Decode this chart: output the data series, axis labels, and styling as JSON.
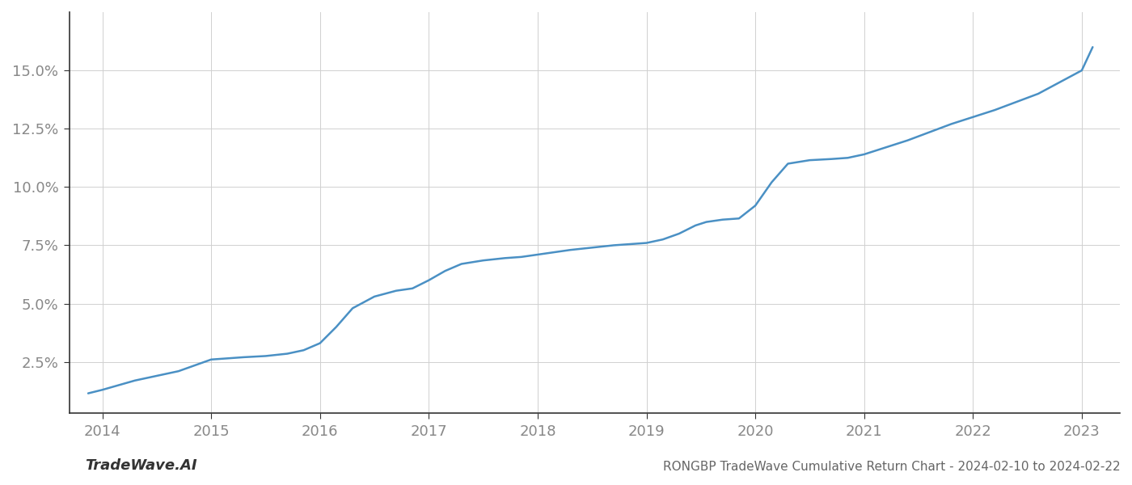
{
  "title": "RONGBP TradeWave Cumulative Return Chart - 2024-02-10 to 2024-02-22",
  "watermark": "TradeWave.AI",
  "line_color": "#4a90c4",
  "background_color": "#ffffff",
  "grid_color": "#d0d0d0",
  "x_years": [
    2014,
    2015,
    2016,
    2017,
    2018,
    2019,
    2020,
    2021,
    2022,
    2023
  ],
  "x_data": [
    2013.87,
    2014.0,
    2014.15,
    2014.3,
    2014.5,
    2014.7,
    2014.85,
    2015.0,
    2015.15,
    2015.3,
    2015.5,
    2015.7,
    2015.85,
    2016.0,
    2016.15,
    2016.3,
    2016.5,
    2016.7,
    2016.85,
    2017.0,
    2017.15,
    2017.3,
    2017.5,
    2017.7,
    2017.85,
    2018.0,
    2018.15,
    2018.3,
    2018.5,
    2018.7,
    2018.85,
    2019.0,
    2019.15,
    2019.3,
    2019.45,
    2019.55,
    2019.7,
    2019.85,
    2020.0,
    2020.15,
    2020.3,
    2020.5,
    2020.7,
    2020.85,
    2021.0,
    2021.2,
    2021.4,
    2021.6,
    2021.8,
    2022.0,
    2022.2,
    2022.4,
    2022.6,
    2022.8,
    2023.0,
    2023.1
  ],
  "y_data": [
    1.15,
    1.3,
    1.5,
    1.7,
    1.9,
    2.1,
    2.35,
    2.6,
    2.65,
    2.7,
    2.75,
    2.85,
    3.0,
    3.3,
    4.0,
    4.8,
    5.3,
    5.55,
    5.65,
    6.0,
    6.4,
    6.7,
    6.85,
    6.95,
    7.0,
    7.1,
    7.2,
    7.3,
    7.4,
    7.5,
    7.55,
    7.6,
    7.75,
    8.0,
    8.35,
    8.5,
    8.6,
    8.65,
    9.2,
    10.2,
    11.0,
    11.15,
    11.2,
    11.25,
    11.4,
    11.7,
    12.0,
    12.35,
    12.7,
    13.0,
    13.3,
    13.65,
    14.0,
    14.5,
    15.0,
    16.0
  ],
  "yticks": [
    2.5,
    5.0,
    7.5,
    10.0,
    12.5,
    15.0
  ],
  "ylim": [
    0.3,
    17.5
  ],
  "xlim": [
    2013.7,
    2023.35
  ],
  "title_fontsize": 11,
  "tick_fontsize": 13,
  "watermark_fontsize": 13,
  "title_color": "#666666",
  "tick_color": "#888888",
  "spine_color": "#333333",
  "line_width": 1.8
}
